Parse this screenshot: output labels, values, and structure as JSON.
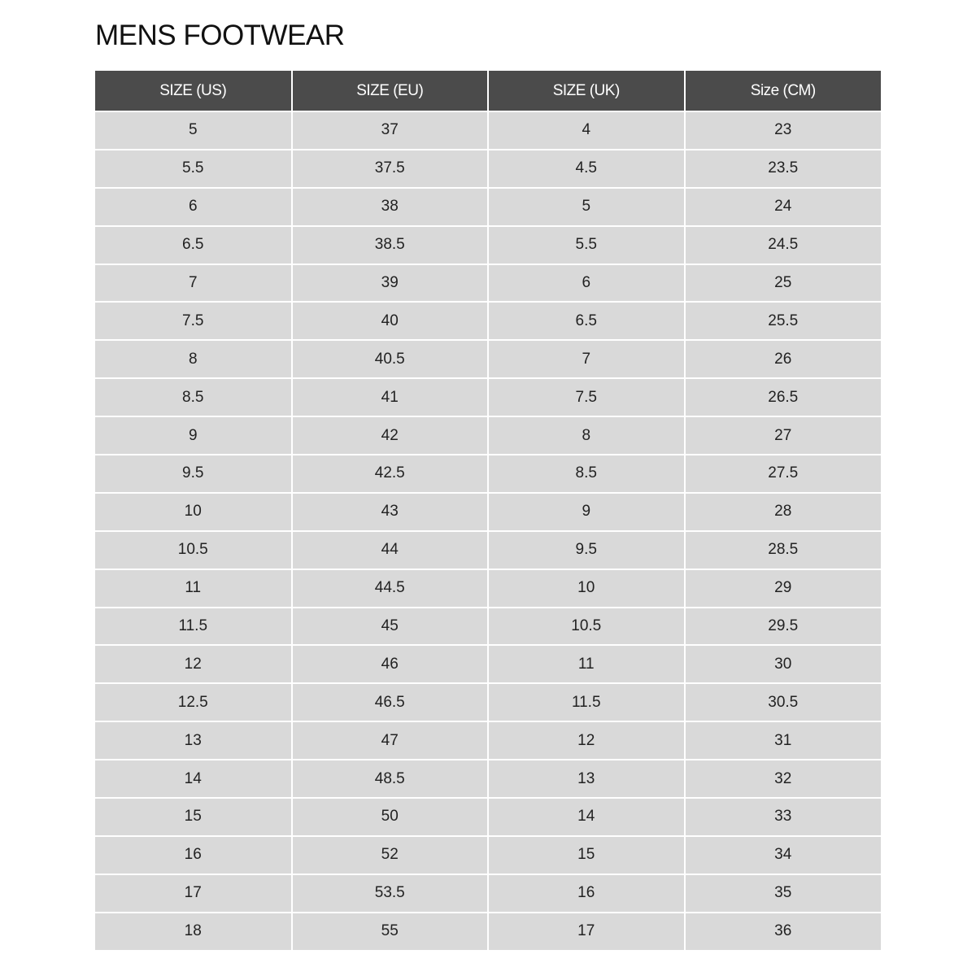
{
  "title": "MENS FOOTWEAR",
  "colors": {
    "header_bg": "#4b4b4b",
    "cell_bg": "#d9d9d9",
    "header_text": "#ffffff"
  },
  "table": {
    "headers": [
      "SIZE (US)",
      "SIZE (EU)",
      "SIZE (UK)",
      "Size (CM)"
    ],
    "rows": [
      [
        "5",
        "37",
        "4",
        "23"
      ],
      [
        "5.5",
        "37.5",
        "4.5",
        "23.5"
      ],
      [
        "6",
        "38",
        "5",
        "24"
      ],
      [
        "6.5",
        "38.5",
        "5.5",
        "24.5"
      ],
      [
        "7",
        "39",
        "6",
        "25"
      ],
      [
        "7.5",
        "40",
        "6.5",
        "25.5"
      ],
      [
        "8",
        "40.5",
        "7",
        "26"
      ],
      [
        "8.5",
        "41",
        "7.5",
        "26.5"
      ],
      [
        "9",
        "42",
        "8",
        "27"
      ],
      [
        "9.5",
        "42.5",
        "8.5",
        "27.5"
      ],
      [
        "10",
        "43",
        "9",
        "28"
      ],
      [
        "10.5",
        "44",
        "9.5",
        "28.5"
      ],
      [
        "11",
        "44.5",
        "10",
        "29"
      ],
      [
        "11.5",
        "45",
        "10.5",
        "29.5"
      ],
      [
        "12",
        "46",
        "11",
        "30"
      ],
      [
        "12.5",
        "46.5",
        "11.5",
        "30.5"
      ],
      [
        "13",
        "47",
        "12",
        "31"
      ],
      [
        "14",
        "48.5",
        "13",
        "32"
      ],
      [
        "15",
        "50",
        "14",
        "33"
      ],
      [
        "16",
        "52",
        "15",
        "34"
      ],
      [
        "17",
        "53.5",
        "16",
        "35"
      ],
      [
        "18",
        "55",
        "17",
        "36"
      ]
    ]
  }
}
